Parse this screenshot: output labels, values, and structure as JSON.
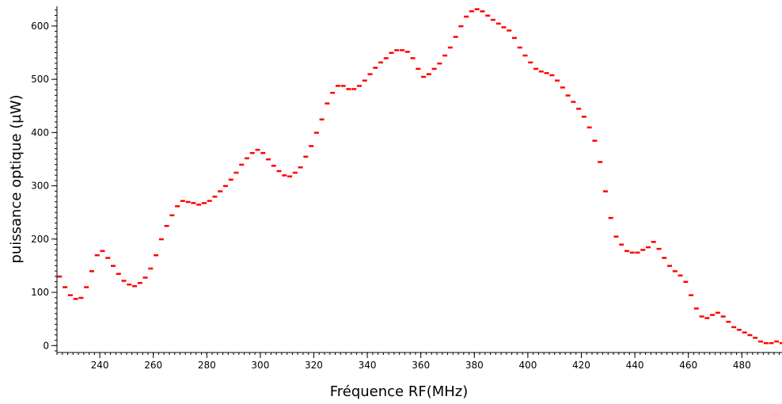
{
  "chart_data": {
    "type": "scatter",
    "x_label": "Fréquence RF(MHz)",
    "y_label": "puissance optique (µW)",
    "xlim": [
      224,
      495
    ],
    "ylim": [
      -13,
      637
    ],
    "xticks": [
      240,
      260,
      280,
      300,
      320,
      340,
      360,
      380,
      400,
      420,
      440,
      460,
      480
    ],
    "yticks": [
      0,
      100,
      200,
      300,
      400,
      500,
      600
    ],
    "series": [
      {
        "color": "#ff0000",
        "x": [
          225,
          227,
          229,
          231,
          233,
          235,
          237,
          239,
          241,
          243,
          245,
          247,
          249,
          251,
          253,
          255,
          257,
          259,
          261,
          263,
          265,
          267,
          269,
          271,
          273,
          275,
          277,
          279,
          281,
          283,
          285,
          287,
          289,
          291,
          293,
          295,
          297,
          299,
          301,
          303,
          305,
          307,
          309,
          311,
          313,
          315,
          317,
          319,
          321,
          323,
          325,
          327,
          329,
          331,
          333,
          335,
          337,
          339,
          341,
          343,
          345,
          347,
          349,
          351,
          353,
          355,
          357,
          359,
          361,
          363,
          365,
          367,
          369,
          371,
          373,
          375,
          377,
          379,
          381,
          383,
          385,
          387,
          389,
          391,
          393,
          395,
          397,
          399,
          401,
          403,
          405,
          407,
          409,
          411,
          413,
          415,
          417,
          419,
          421,
          423,
          425,
          427,
          429,
          431,
          433,
          435,
          437,
          439,
          441,
          443,
          445,
          447,
          449,
          451,
          453,
          455,
          457,
          459,
          461,
          463,
          465,
          467,
          469,
          471,
          473,
          475,
          477,
          479,
          481,
          483,
          485,
          487,
          489,
          491,
          493,
          495
        ],
        "values": [
          130,
          110,
          95,
          88,
          90,
          110,
          140,
          170,
          178,
          165,
          150,
          135,
          122,
          115,
          112,
          118,
          128,
          145,
          170,
          200,
          225,
          245,
          262,
          272,
          270,
          268,
          265,
          268,
          272,
          280,
          290,
          300,
          312,
          325,
          340,
          352,
          362,
          368,
          362,
          350,
          338,
          328,
          320,
          318,
          325,
          335,
          355,
          375,
          400,
          425,
          455,
          475,
          488,
          488,
          482,
          482,
          488,
          498,
          510,
          522,
          532,
          540,
          550,
          555,
          555,
          552,
          540,
          520,
          505,
          510,
          520,
          530,
          545,
          560,
          580,
          600,
          618,
          628,
          632,
          628,
          620,
          612,
          605,
          598,
          592,
          578,
          560,
          545,
          532,
          520,
          515,
          512,
          508,
          498,
          485,
          470,
          458,
          445,
          430,
          410,
          385,
          345,
          290,
          240,
          205,
          190,
          178,
          175,
          175,
          180,
          185,
          195,
          182,
          165,
          150,
          140,
          132,
          120,
          95,
          70,
          55,
          52,
          58,
          62,
          55,
          45,
          35,
          30,
          25,
          20,
          15,
          8,
          5,
          5,
          8,
          5
        ]
      }
    ]
  }
}
